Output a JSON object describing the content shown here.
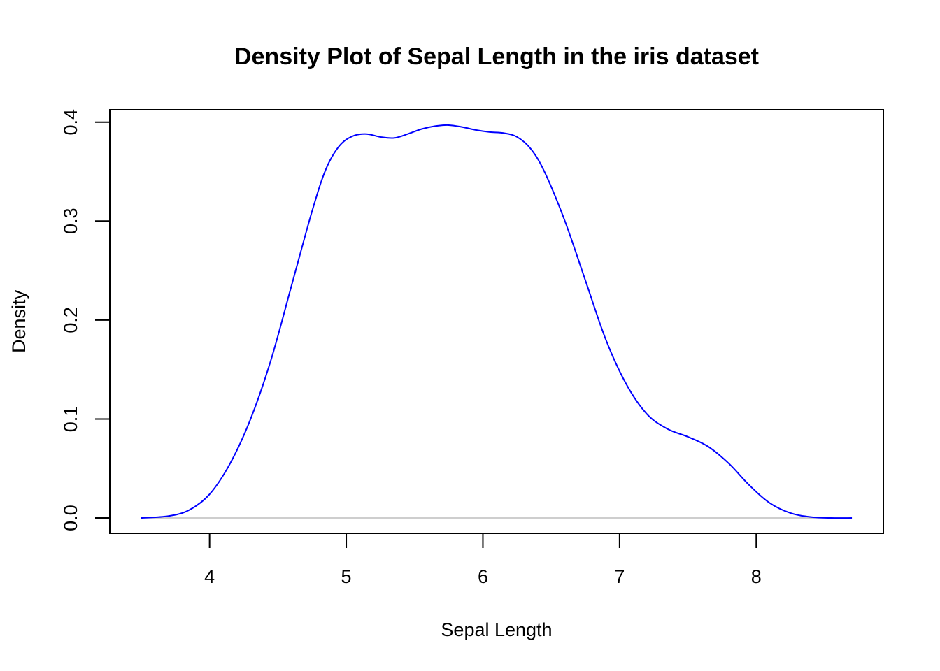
{
  "chart_data": {
    "type": "line",
    "title": "Density Plot of Sepal Length in the iris dataset",
    "xlabel": "Sepal Length",
    "ylabel": "Density",
    "xlim": [
      3.27,
      8.93
    ],
    "ylim": [
      -0.0155,
      0.4125
    ],
    "x_ticks": [
      4,
      5,
      6,
      7,
      8
    ],
    "x_tick_labels": [
      "4",
      "5",
      "6",
      "7",
      "8"
    ],
    "y_ticks": [
      0.0,
      0.1,
      0.2,
      0.3,
      0.4
    ],
    "y_tick_labels": [
      "0.0",
      "0.1",
      "0.2",
      "0.3",
      "0.4"
    ],
    "grid": false,
    "baseline": {
      "y": 0.0,
      "color": "#bebebe"
    },
    "series": [
      {
        "color": "#0000ff",
        "x": [
          3.5,
          3.7,
          3.85,
          4.0,
          4.15,
          4.3,
          4.45,
          4.6,
          4.75,
          4.85,
          4.95,
          5.05,
          5.15,
          5.25,
          5.35,
          5.45,
          5.55,
          5.65,
          5.75,
          5.85,
          5.95,
          6.05,
          6.15,
          6.25,
          6.35,
          6.45,
          6.6,
          6.75,
          6.9,
          7.05,
          7.2,
          7.35,
          7.5,
          7.65,
          7.8,
          7.95,
          8.1,
          8.25,
          8.4,
          8.55,
          8.7
        ],
        "y": [
          0.0,
          0.002,
          0.008,
          0.024,
          0.055,
          0.1,
          0.16,
          0.235,
          0.31,
          0.352,
          0.376,
          0.386,
          0.388,
          0.385,
          0.384,
          0.388,
          0.393,
          0.396,
          0.397,
          0.395,
          0.392,
          0.39,
          0.389,
          0.385,
          0.373,
          0.35,
          0.3,
          0.24,
          0.18,
          0.135,
          0.105,
          0.09,
          0.082,
          0.072,
          0.055,
          0.033,
          0.015,
          0.005,
          0.001,
          0.0,
          0.0
        ]
      }
    ]
  }
}
